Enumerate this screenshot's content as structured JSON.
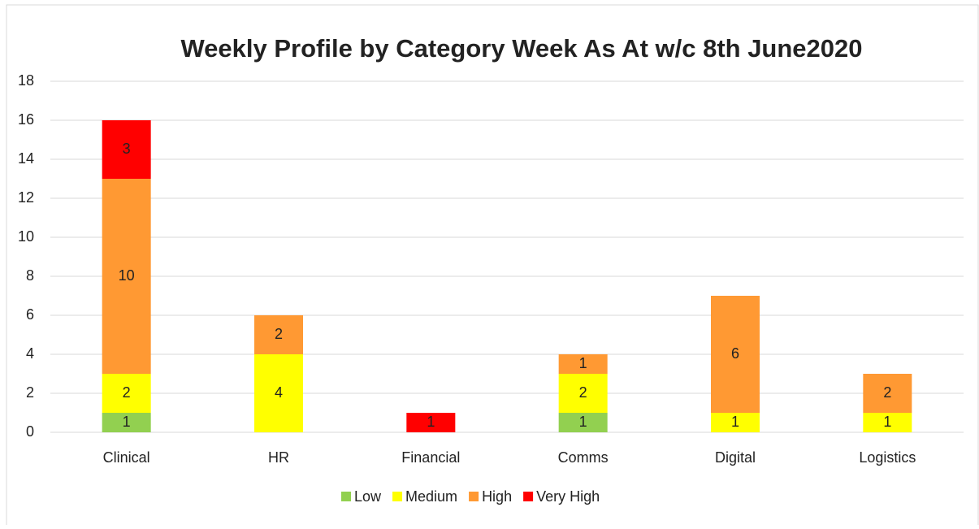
{
  "chart_data": {
    "type": "stacked_bar",
    "title": "Weekly Profile by Category Week As At w/c 8th June2020",
    "categories": [
      "Clinical",
      "HR",
      "Financial",
      "Comms",
      "Digital",
      "Logistics"
    ],
    "series": [
      {
        "name": "Low",
        "color": "#92d050",
        "values": [
          1,
          null,
          null,
          1,
          null,
          null
        ]
      },
      {
        "name": "Medium",
        "color": "#ffff00",
        "values": [
          2,
          4,
          null,
          2,
          1,
          1
        ]
      },
      {
        "name": "High",
        "color": "#ff9933",
        "values": [
          10,
          2,
          null,
          1,
          6,
          2
        ]
      },
      {
        "name": "Very High",
        "color": "#ff0000",
        "values": [
          3,
          null,
          1,
          null,
          null,
          null
        ]
      }
    ],
    "ylim": [
      0,
      18
    ],
    "yticks": [
      0,
      2,
      4,
      6,
      8,
      10,
      12,
      14,
      16,
      18
    ],
    "grid": true,
    "legend": "bottom"
  }
}
